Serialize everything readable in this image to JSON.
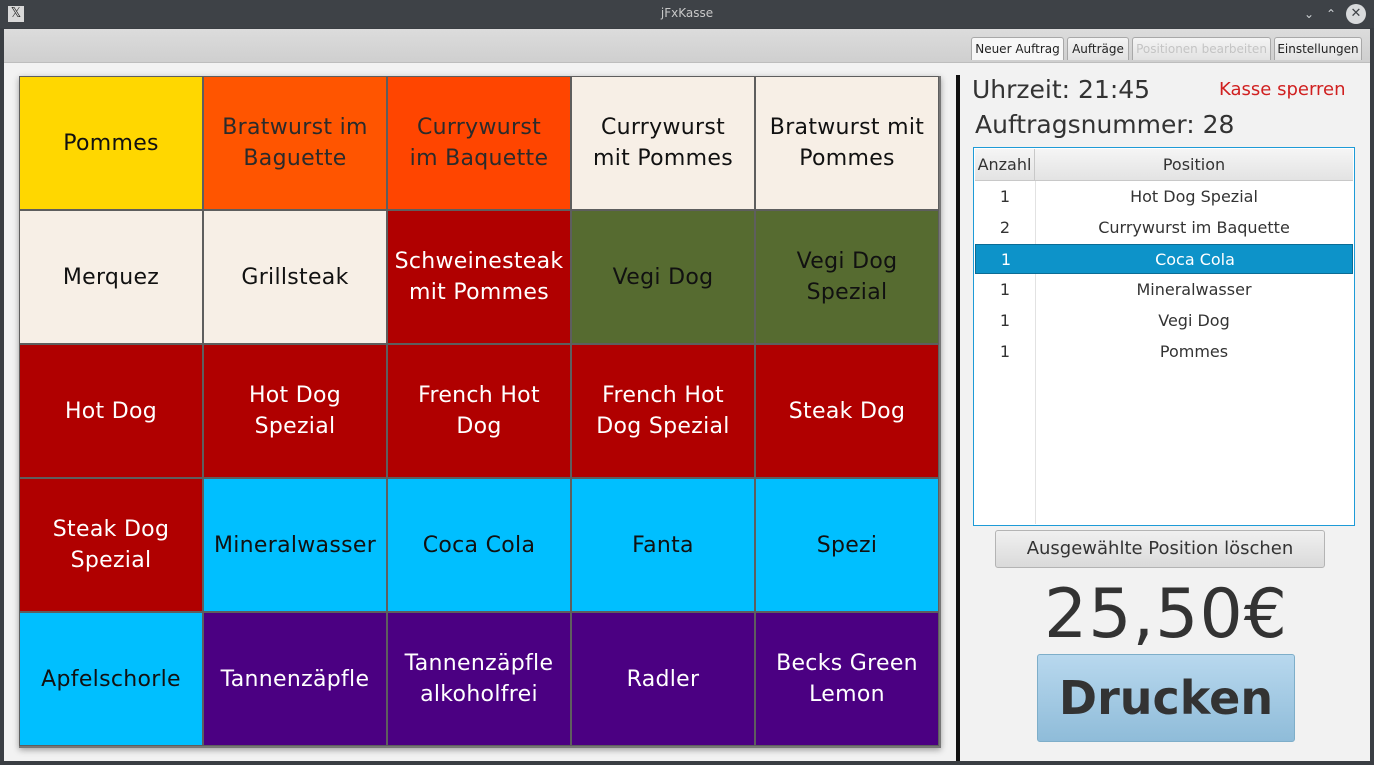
{
  "window": {
    "title": "jFxKasse"
  },
  "titlebar_controls": {
    "minimize": "⌄",
    "maximize": "⌃",
    "close": "✕"
  },
  "tabs": [
    {
      "label": "Neuer Auftrag",
      "active": true,
      "disabled": false
    },
    {
      "label": "Aufträge",
      "active": false,
      "disabled": false
    },
    {
      "label": "Positionen bearbeiten",
      "active": false,
      "disabled": true
    },
    {
      "label": "Einstellungen",
      "active": false,
      "disabled": false
    }
  ],
  "products": [
    {
      "label": "Pommes",
      "bg": "#ffd700",
      "fg": "#111111"
    },
    {
      "label": "Bratwurst im Baguette",
      "bg": "#ff5500",
      "fg": "#2b2b2b"
    },
    {
      "label": "Currywurst im Baquette",
      "bg": "#ff4500",
      "fg": "#2b2b2b"
    },
    {
      "label": "Currywurst mit Pommes",
      "bg": "#f7efe6",
      "fg": "#111111"
    },
    {
      "label": "Bratwurst mit Pommes",
      "bg": "#f7efe6",
      "fg": "#111111"
    },
    {
      "label": "Merquez",
      "bg": "#f7efe6",
      "fg": "#111111"
    },
    {
      "label": "Grillsteak",
      "bg": "#f7efe6",
      "fg": "#111111"
    },
    {
      "label": "Schweinesteak mit Pommes",
      "bg": "#b00000",
      "fg": "#ffffff"
    },
    {
      "label": "Vegi Dog",
      "bg": "#566b30",
      "fg": "#111111"
    },
    {
      "label": "Vegi Dog Spezial",
      "bg": "#566b30",
      "fg": "#111111"
    },
    {
      "label": "Hot Dog",
      "bg": "#b00000",
      "fg": "#ffffff"
    },
    {
      "label": "Hot Dog Spezial",
      "bg": "#b00000",
      "fg": "#ffffff"
    },
    {
      "label": "French Hot Dog",
      "bg": "#b00000",
      "fg": "#ffffff"
    },
    {
      "label": "French Hot Dog Spezial",
      "bg": "#b00000",
      "fg": "#ffffff"
    },
    {
      "label": "Steak Dog",
      "bg": "#b00000",
      "fg": "#ffffff"
    },
    {
      "label": "Steak Dog Spezial",
      "bg": "#b00000",
      "fg": "#ffffff"
    },
    {
      "label": "Mineralwasser",
      "bg": "#00bfff",
      "fg": "#111111"
    },
    {
      "label": "Coca Cola",
      "bg": "#00bfff",
      "fg": "#111111"
    },
    {
      "label": "Fanta",
      "bg": "#00bfff",
      "fg": "#111111"
    },
    {
      "label": "Spezi",
      "bg": "#00bfff",
      "fg": "#111111"
    },
    {
      "label": "Apfelschorle",
      "bg": "#00bfff",
      "fg": "#111111"
    },
    {
      "label": "Tannenzäpfle",
      "bg": "#4b0082",
      "fg": "#ffffff"
    },
    {
      "label": "Tannenzäpfle alkoholfrei",
      "bg": "#4b0082",
      "fg": "#ffffff"
    },
    {
      "label": "Radler",
      "bg": "#4b0082",
      "fg": "#ffffff"
    },
    {
      "label": "Becks Green Lemon",
      "bg": "#4b0082",
      "fg": "#ffffff"
    }
  ],
  "info": {
    "time_label": "Uhrzeit: 21:45",
    "lock_label": "Kasse sperren",
    "order_label": "Auftragsnummer: 28"
  },
  "order_table": {
    "headers": {
      "qty": "Anzahl",
      "position": "Position"
    },
    "rows": [
      {
        "qty": "1",
        "position": "Hot Dog Spezial",
        "selected": false
      },
      {
        "qty": "2",
        "position": "Currywurst im Baquette",
        "selected": false
      },
      {
        "qty": "1",
        "position": "Coca Cola",
        "selected": true
      },
      {
        "qty": "1",
        "position": "Mineralwasser",
        "selected": false
      },
      {
        "qty": "1",
        "position": "Vegi Dog",
        "selected": false
      },
      {
        "qty": "1",
        "position": "Pommes",
        "selected": false
      }
    ]
  },
  "actions": {
    "delete_label": "Ausgewählte Position löschen",
    "total": "25,50€",
    "print_label": "Drucken"
  },
  "colors": {
    "accent": "#1e9bd7",
    "selection": "#0d93c9",
    "warning_text": "#d02020"
  }
}
